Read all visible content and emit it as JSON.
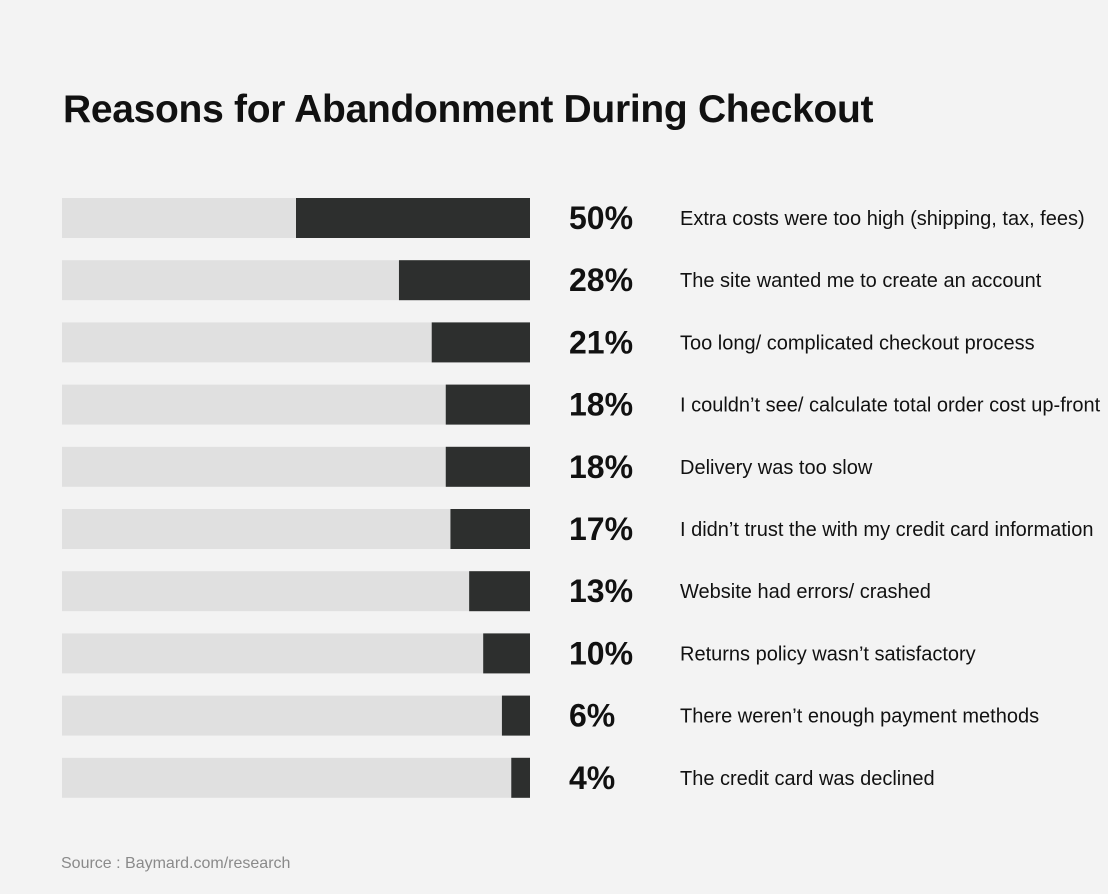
{
  "title": "Reasons for Abandonment During Checkout",
  "source": "Source : Baymard.com/research",
  "colors": {
    "background": "#f3f3f3",
    "track": "#e0e0e0",
    "bar": "#2d2f2e",
    "text": "#111111",
    "source_text": "#8a8a8a"
  },
  "chart_data": {
    "type": "bar",
    "orientation": "horizontal",
    "categories": [
      "Extra costs were too high (shipping, tax, fees)",
      "The site wanted me to create an account",
      "Too long/ complicated checkout process",
      "I couldn’t see/ calculate total order cost up-front",
      "Delivery was too slow",
      "I didn’t trust the with my credit card information",
      "Website had errors/ crashed",
      "Returns policy wasn’t satisfactory",
      "There weren’t enough payment methods",
      "The credit card was declined"
    ],
    "values": [
      50,
      28,
      21,
      18,
      18,
      17,
      13,
      10,
      6,
      4
    ],
    "value_labels": [
      "50%",
      "28%",
      "21%",
      "18%",
      "18%",
      "17%",
      "13%",
      "10%",
      "6%",
      "4%"
    ],
    "xlim": [
      0,
      100
    ],
    "grid": false,
    "legend": "none"
  }
}
